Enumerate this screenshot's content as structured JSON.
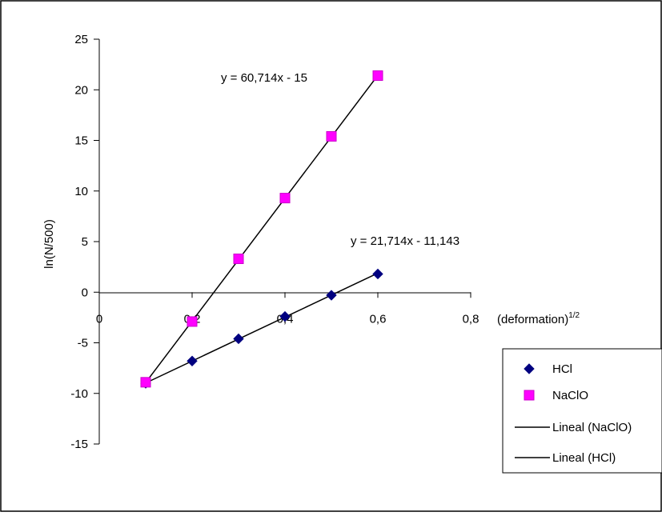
{
  "chart_data": {
    "type": "scatter",
    "xlabel": "(deformation)",
    "xlabel_superscript": "1/2",
    "ylabel": "ln(N/500)",
    "xlim": [
      0,
      0.8
    ],
    "ylim": [
      -15,
      25
    ],
    "x_ticks": [
      "0",
      "0,2",
      "0,4",
      "0,6",
      "0,8"
    ],
    "y_ticks": [
      "-15",
      "-10",
      "-5",
      "0",
      "5",
      "10",
      "15",
      "20",
      "25"
    ],
    "grid": false,
    "legend_position": "right",
    "series": [
      {
        "name": "HCl",
        "marker": "diamond",
        "color": "#000080",
        "x": [
          0.1,
          0.2,
          0.3,
          0.4,
          0.5,
          0.6
        ],
        "y": [
          -9.0,
          -6.8,
          -4.6,
          -2.4,
          -0.3,
          1.8
        ]
      },
      {
        "name": "NaClO",
        "marker": "square",
        "color": "#ff00ff",
        "x": [
          0.1,
          0.2,
          0.3,
          0.4,
          0.5,
          0.6
        ],
        "y": [
          -8.9,
          -2.9,
          3.3,
          9.3,
          15.4,
          21.4
        ]
      }
    ],
    "trendlines": [
      {
        "name": "Lineal (NaClO)",
        "slope": 60.714,
        "intercept": -15,
        "x_range": [
          0.1,
          0.6
        ],
        "equation": "y = 60,714x - 15",
        "color": "#000000"
      },
      {
        "name": "Lineal (HCl)",
        "slope": 21.714,
        "intercept": -11.143,
        "x_range": [
          0.1,
          0.6
        ],
        "equation": "y = 21,714x - 11,143",
        "color": "#000000"
      }
    ]
  }
}
